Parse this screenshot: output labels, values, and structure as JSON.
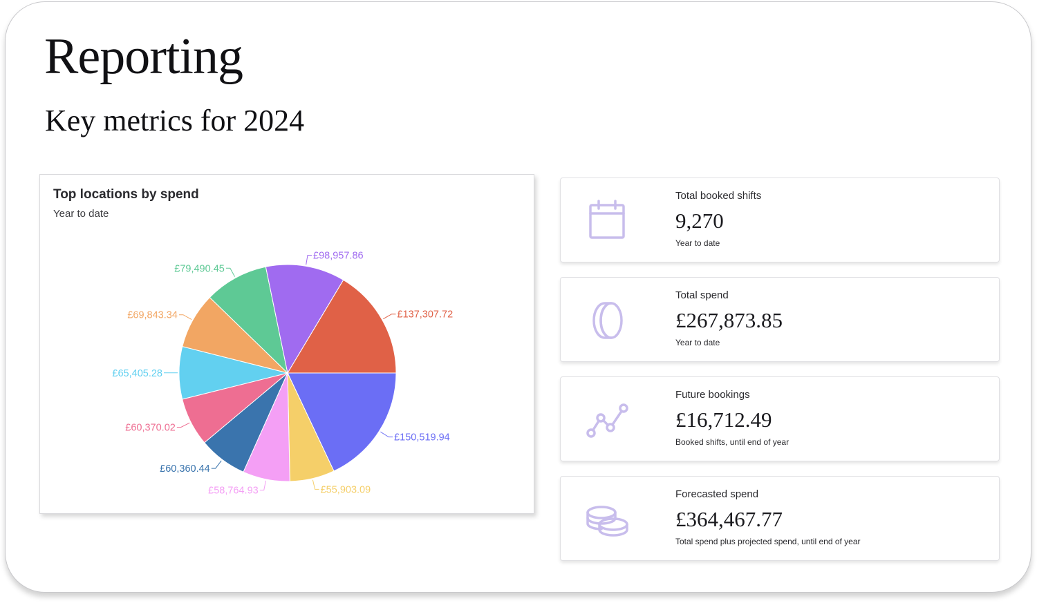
{
  "page": {
    "title": "Reporting",
    "subtitle": "Key metrics for 2024"
  },
  "chart_card": {
    "title": "Top locations by spend",
    "subtitle": "Year to date"
  },
  "chart_data": {
    "type": "pie",
    "title": "Top locations by spend",
    "subtitle": "Year to date",
    "slices": [
      {
        "label": "£150,519.94",
        "value": 150519.94,
        "color": "#6b6ef5"
      },
      {
        "label": "£55,903.09",
        "value": 55903.09,
        "color": "#f5cf69"
      },
      {
        "label": "£58,764.93",
        "value": 58764.93,
        "color": "#f49ff5"
      },
      {
        "label": "£60,360.44",
        "value": 60360.44,
        "color": "#3a74ad"
      },
      {
        "label": "£60,370.02",
        "value": 60370.02,
        "color": "#ee6e92"
      },
      {
        "label": "£65,405.28",
        "value": 65405.28,
        "color": "#62d0f0"
      },
      {
        "label": "£69,843.34",
        "value": 69843.34,
        "color": "#f2a663"
      },
      {
        "label": "£79,490.45",
        "value": 79490.45,
        "color": "#5ec995"
      },
      {
        "label": "£98,957.86",
        "value": 98957.86,
        "color": "#a06bf0"
      },
      {
        "label": "£137,307.72",
        "value": 137307.72,
        "color": "#e06147"
      }
    ]
  },
  "metrics": [
    {
      "label": "Total booked shifts",
      "value": "9,270",
      "note": "Year to date",
      "icon": "calendar-icon"
    },
    {
      "label": "Total spend",
      "value": "£267,873.85",
      "note": "Year to date",
      "icon": "coin-icon"
    },
    {
      "label": "Future bookings",
      "value": "£16,712.49",
      "note": "Booked shifts, until end of year",
      "icon": "trend-line-icon"
    },
    {
      "label": "Forecasted spend",
      "value": "£364,467.77",
      "note": "Total spend plus projected spend, until end of year",
      "icon": "coin-stack-icon"
    }
  ],
  "colors": {
    "icon_stroke": "#c8bdec"
  }
}
